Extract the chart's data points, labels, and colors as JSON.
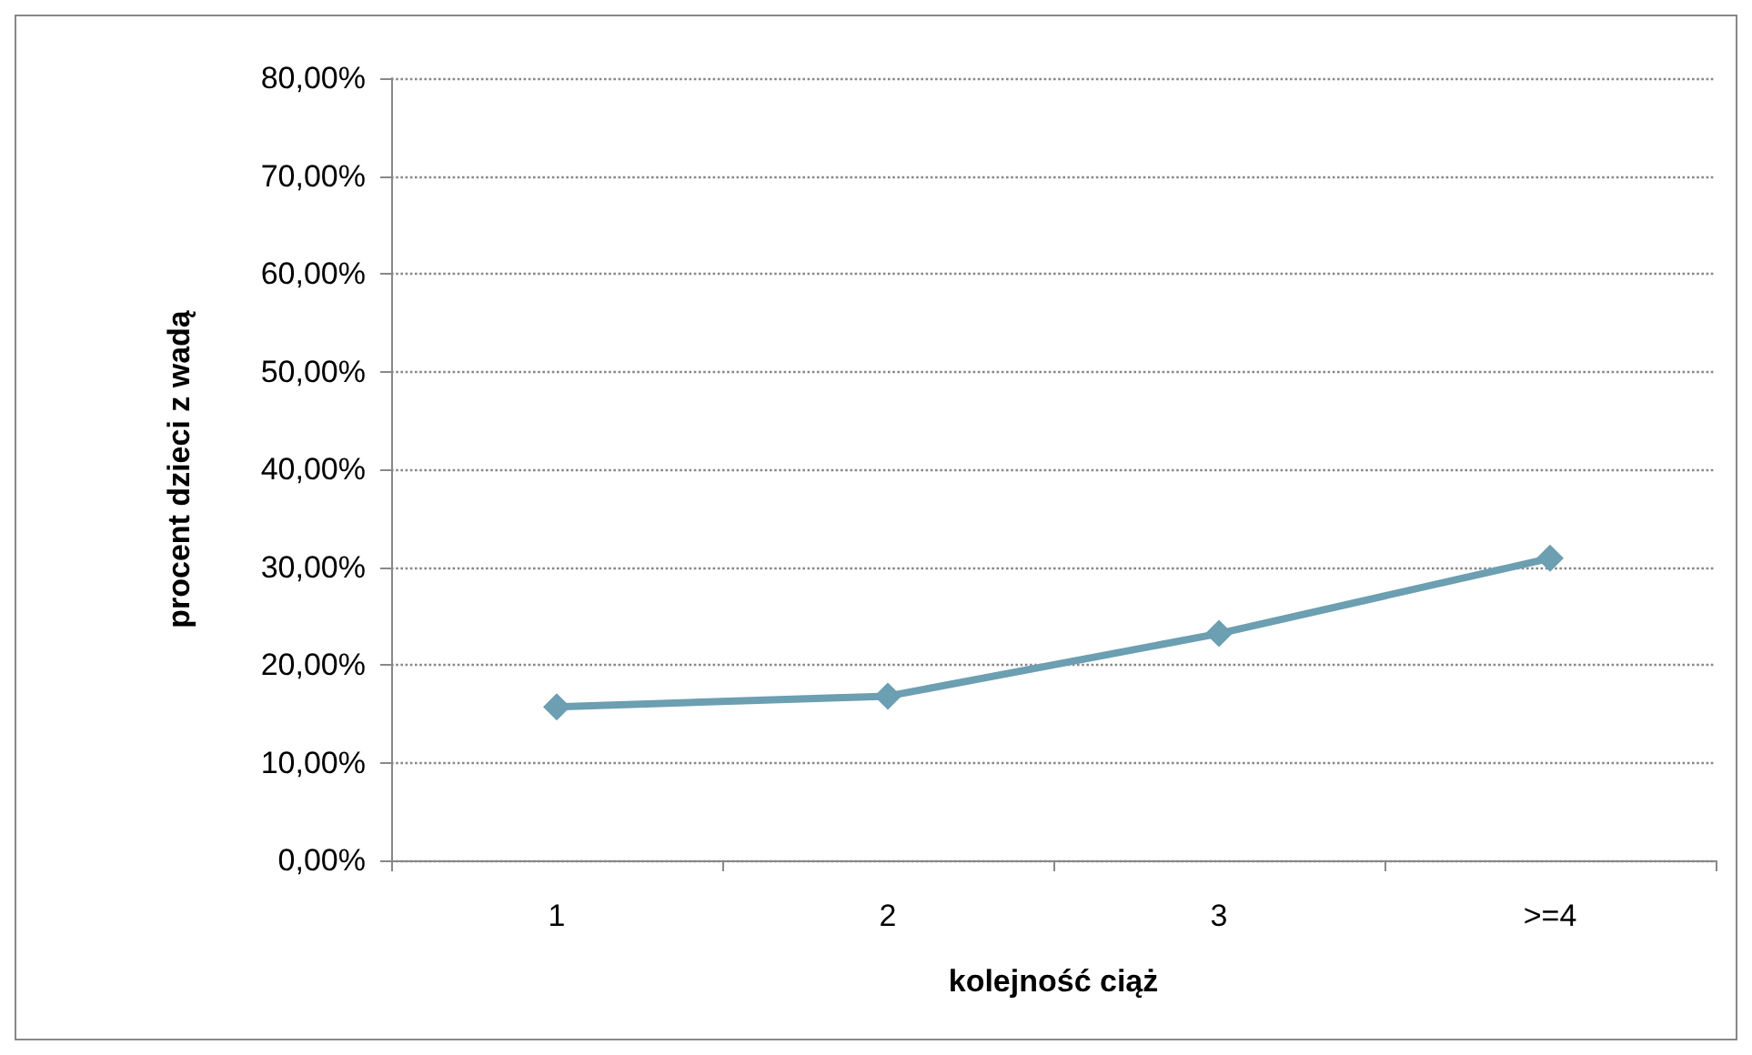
{
  "chart_data": {
    "type": "line",
    "xlabel": "kolejność ciąż",
    "ylabel": "procent dzieci z wadą",
    "categories": [
      "1",
      "2",
      "3",
      ">=4"
    ],
    "series": [
      {
        "color": "#6b9fb1",
        "values": [
          15.7,
          16.8,
          23.2,
          30.9
        ]
      }
    ],
    "ylim": [
      0,
      80
    ],
    "yticks": [
      {
        "value": 0,
        "label": "0,00%"
      },
      {
        "value": 10,
        "label": "10,00%"
      },
      {
        "value": 20,
        "label": "20,00%"
      },
      {
        "value": 30,
        "label": "30,00%"
      },
      {
        "value": 40,
        "label": "40,00%"
      },
      {
        "value": 50,
        "label": "50,00%"
      },
      {
        "value": 60,
        "label": "60,00%"
      },
      {
        "value": 70,
        "label": "70,00%"
      },
      {
        "value": 80,
        "label": "80,00%"
      }
    ],
    "grid": "y",
    "marker": "diamond",
    "line_style": "solid"
  }
}
